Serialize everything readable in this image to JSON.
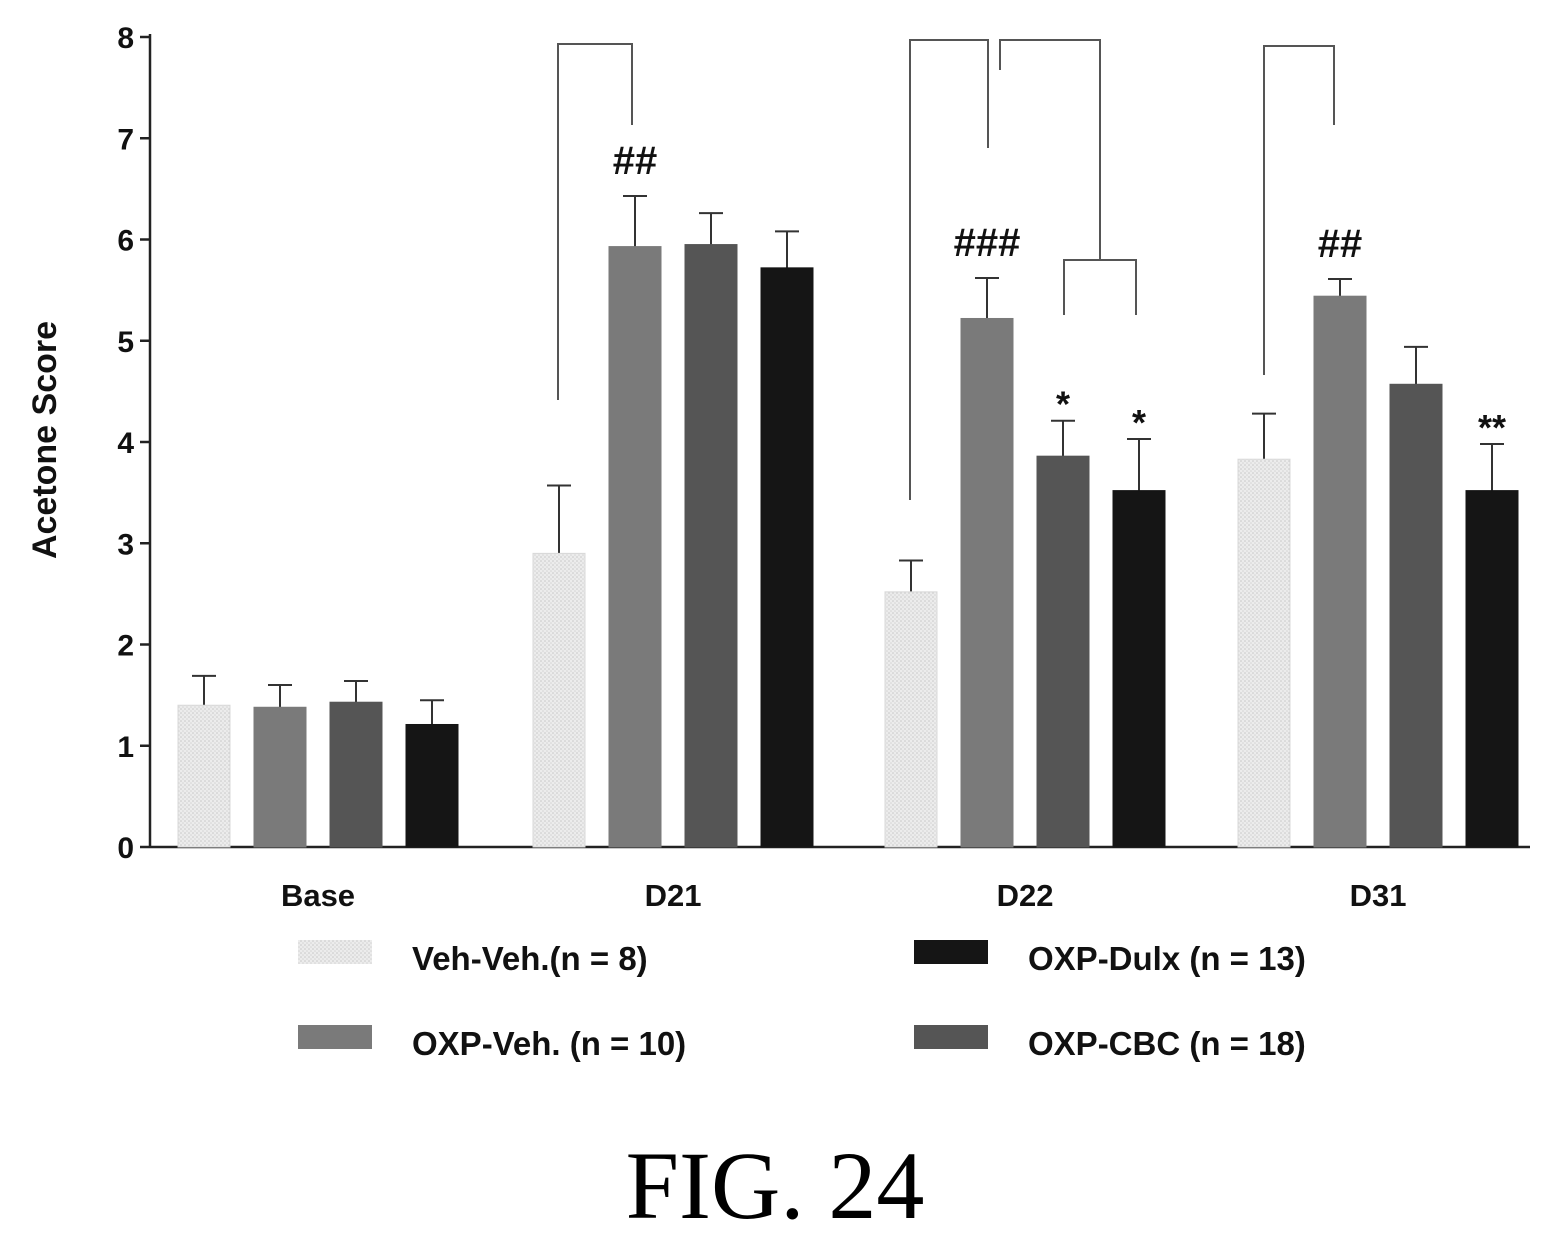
{
  "chart_data": {
    "type": "bar",
    "ylabel": "Acetone Score",
    "xlabel": "",
    "ylim": [
      0,
      8
    ],
    "yticks": [
      0,
      1,
      2,
      3,
      4,
      5,
      6,
      7,
      8
    ],
    "categories": [
      "Base",
      "D21",
      "D22",
      "D31"
    ],
    "series": [
      {
        "name": "Veh-Veh.(n = 8)",
        "color": "#e6e6e6",
        "values": [
          1.4,
          2.9,
          2.52,
          3.83
        ],
        "errors": [
          0.29,
          0.67,
          0.31,
          0.45
        ]
      },
      {
        "name": "OXP-Veh. (n = 10)",
        "color": "#7a7a7a",
        "values": [
          1.38,
          5.93,
          5.22,
          5.44
        ],
        "errors": [
          0.22,
          0.5,
          0.4,
          0.17
        ]
      },
      {
        "name": "OXP-CBC (n = 18)",
        "color": "#555555",
        "values": [
          1.43,
          5.95,
          3.86,
          4.57
        ],
        "errors": [
          0.21,
          0.31,
          0.35,
          0.37
        ]
      },
      {
        "name": "OXP-Dulx (n = 13)",
        "color": "#151515",
        "values": [
          1.21,
          5.72,
          3.52,
          3.52
        ],
        "errors": [
          0.24,
          0.36,
          0.51,
          0.46
        ]
      }
    ],
    "legend_order": [
      0,
      3,
      1,
      2
    ],
    "legend_placement": "bottom, two columns",
    "annotations": [
      {
        "text": "##",
        "category": "D21",
        "series": 1
      },
      {
        "text": "###",
        "category": "D22",
        "series": 1
      },
      {
        "text": "*",
        "category": "D22",
        "series": 2
      },
      {
        "text": "*",
        "category": "D22",
        "series": 3
      },
      {
        "text": "##",
        "category": "D31",
        "series": 1
      },
      {
        "text": "**",
        "category": "D31",
        "series": 3
      }
    ]
  },
  "figure_label": "FIG. 24"
}
